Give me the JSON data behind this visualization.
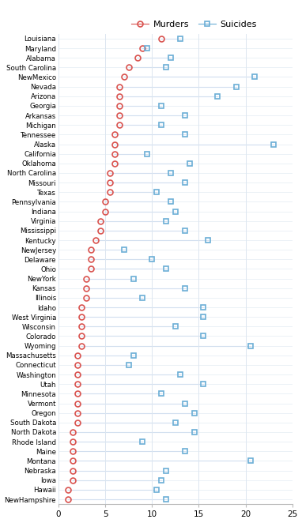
{
  "states": [
    "Louisiana",
    "Maryland",
    "Alabama",
    "South Carolina",
    "NewMexico",
    "Nevada",
    "Arizona",
    "Georgia",
    "Arkansas",
    "Michigan",
    "Tennessee",
    "Alaska",
    "California",
    "Oklahoma",
    "North Carolina",
    "Missouri",
    "Texas",
    "Pennsylvania",
    "Indiana",
    "Virginia",
    "Mississippi",
    "Kentucky",
    "NewJersey",
    "Delaware",
    "Ohio",
    "NewYork",
    "Kansas",
    "Illinois",
    "Idaho",
    "West Virginia",
    "Wisconsin",
    "Colorado",
    "Wyoming",
    "Massachusetts",
    "Connecticut",
    "Washington",
    "Utah",
    "Minnesota",
    "Vermont",
    "Oregon",
    "South Dakota",
    "North Dakota",
    "Rhode Island",
    "Maine",
    "Montana",
    "Nebraska",
    "Iowa",
    "Hawaii",
    "NewHampshire"
  ],
  "murders": [
    11.0,
    9.0,
    8.5,
    7.5,
    7.0,
    6.5,
    6.5,
    6.5,
    6.5,
    6.5,
    6.0,
    6.0,
    6.0,
    6.0,
    5.5,
    5.5,
    5.5,
    5.0,
    5.0,
    4.5,
    4.5,
    4.0,
    3.5,
    3.5,
    3.5,
    3.0,
    3.0,
    3.0,
    2.5,
    2.5,
    2.5,
    2.5,
    2.5,
    2.0,
    2.0,
    2.0,
    2.0,
    2.0,
    2.0,
    2.0,
    2.0,
    1.5,
    1.5,
    1.5,
    1.5,
    1.5,
    1.5,
    1.0,
    1.0
  ],
  "suicides": [
    13.0,
    9.5,
    12.0,
    11.5,
    21.0,
    19.0,
    17.0,
    11.0,
    13.5,
    11.0,
    13.5,
    23.0,
    9.5,
    14.0,
    12.0,
    13.5,
    10.5,
    12.0,
    12.5,
    11.5,
    13.5,
    16.0,
    7.0,
    10.0,
    11.5,
    8.0,
    13.5,
    9.0,
    15.5,
    15.5,
    12.5,
    15.5,
    20.5,
    8.0,
    7.5,
    13.0,
    15.5,
    11.0,
    13.5,
    14.5,
    12.5,
    14.5,
    9.0,
    13.5,
    20.5,
    11.5,
    11.0,
    10.5,
    11.5
  ],
  "murder_color": "#d9534f",
  "suicide_color": "#6baed6",
  "line_color": "#aec7e8",
  "bg_color": "#ffffff",
  "grid_color": "#dce6f0",
  "xlim": [
    0,
    25
  ],
  "xticks": [
    0,
    5,
    10,
    15,
    20,
    25
  ]
}
